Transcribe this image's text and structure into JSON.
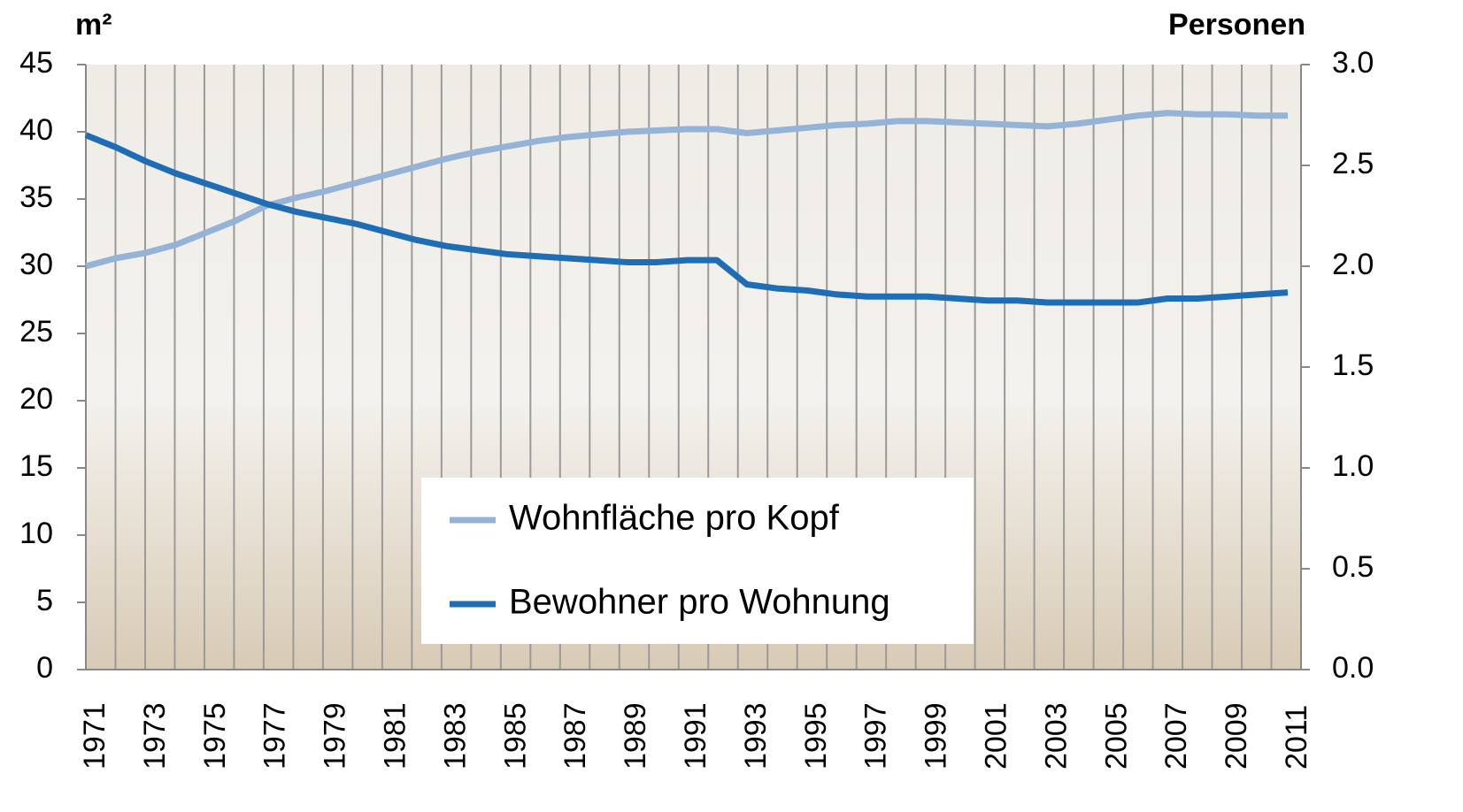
{
  "chart_data": {
    "type": "line",
    "y_label": "m²",
    "y2_label": "Personen",
    "categories": [
      "1971",
      null,
      "1973",
      null,
      "1975",
      null,
      "1977",
      null,
      "1979",
      null,
      "1981",
      null,
      "1983",
      null,
      "1985",
      null,
      "1987",
      null,
      "1989",
      null,
      "1991",
      null,
      "1993",
      null,
      "1995",
      null,
      "1997",
      null,
      "1999",
      null,
      "2001",
      null,
      "2003",
      null,
      "2005",
      null,
      "2007",
      null,
      "2009",
      null,
      "2011"
    ],
    "series": [
      {
        "name": "Wohnfläche pro Kopf",
        "color": "#95b3d7",
        "axis": "y",
        "values": [
          30.0,
          30.6,
          31.0,
          31.6,
          32.5,
          33.4,
          34.5,
          35.1,
          35.6,
          36.2,
          36.8,
          37.4,
          38.0,
          38.5,
          38.9,
          39.3,
          39.6,
          39.8,
          40.0,
          40.1,
          40.2,
          40.2,
          39.9,
          40.1,
          40.3,
          40.5,
          40.6,
          40.8,
          40.8,
          40.7,
          40.6,
          40.5,
          40.4,
          40.6,
          40.9,
          41.2,
          41.4,
          41.3,
          41.3,
          41.2,
          41.2
        ]
      },
      {
        "name": "Bewohner pro Wohnung",
        "color": "#1f6db5",
        "axis": "y2",
        "values": [
          2.65,
          2.59,
          2.52,
          2.46,
          2.41,
          2.36,
          2.31,
          2.27,
          2.24,
          2.21,
          2.17,
          2.13,
          2.1,
          2.08,
          2.06,
          2.05,
          2.04,
          2.03,
          2.02,
          2.02,
          2.03,
          2.03,
          1.91,
          1.89,
          1.88,
          1.86,
          1.85,
          1.85,
          1.85,
          1.84,
          1.83,
          1.83,
          1.82,
          1.82,
          1.82,
          1.82,
          1.84,
          1.84,
          1.85,
          1.86,
          1.87
        ]
      }
    ],
    "ylim": [
      0,
      45
    ],
    "yticks": [
      0,
      5,
      10,
      15,
      20,
      25,
      30,
      35,
      40,
      45
    ],
    "y2lim": [
      0,
      3
    ],
    "y2ticks": [
      {
        "value": 0,
        "label": "0.0"
      },
      0.5,
      {
        "value": 1,
        "label": "1.0"
      },
      1.5,
      {
        "value": 2,
        "label": "2.0"
      },
      2.5,
      {
        "value": 3,
        "label": "3.0"
      }
    ],
    "grid": true
  }
}
